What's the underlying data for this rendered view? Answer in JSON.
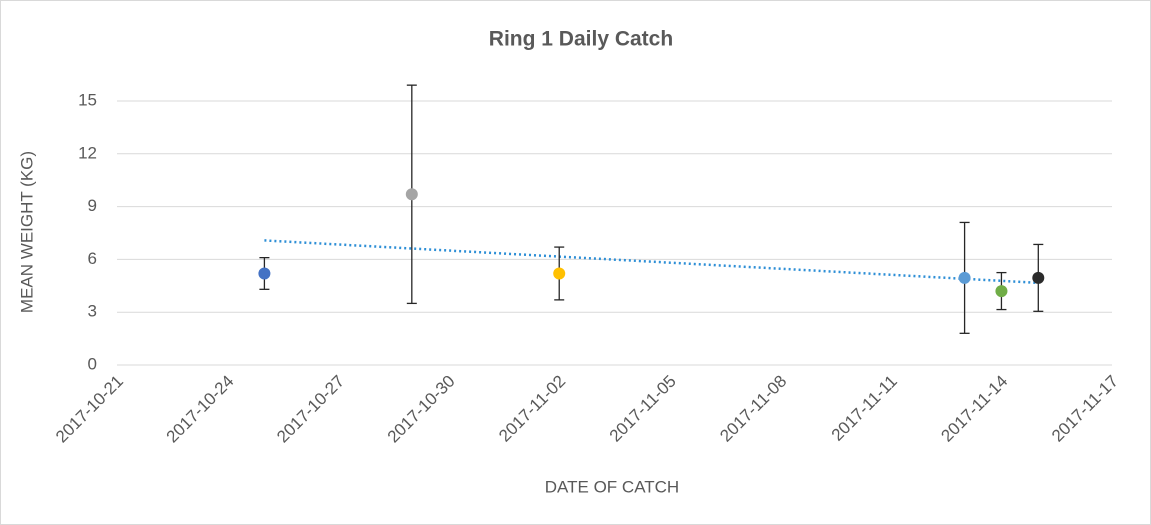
{
  "chart_data": {
    "type": "scatter",
    "title": "Ring 1 Daily Catch",
    "x_label": "DATE OF CATCH",
    "y_label": "MEAN WEIGHT (KG)",
    "x": [
      "2017-10-25",
      "2017-10-29",
      "2017-11-02",
      "2017-11-13",
      "2017-11-14",
      "2017-11-15"
    ],
    "values": [
      5.2,
      9.7,
      5.2,
      4.95,
      4.2,
      4.95
    ],
    "errors": [
      0.9,
      6.2,
      1.5,
      3.15,
      1.05,
      1.9
    ],
    "colors": [
      "#4472c4",
      "#a5a5a5",
      "#ffc000",
      "#5b9bd5",
      "#70ad47",
      "#2b2b2b"
    ],
    "trendline": "linear",
    "trendline_color": "#2e8fd6",
    "xlim": [
      "2017-10-21",
      "2017-11-17"
    ],
    "xticks": [
      "2017-10-21",
      "2017-10-24",
      "2017-10-27",
      "2017-10-30",
      "2017-11-02",
      "2017-11-05",
      "2017-11-08",
      "2017-11-11",
      "2017-11-14",
      "2017-11-17"
    ],
    "ylim": [
      0,
      15
    ],
    "yticks": [
      0,
      3,
      6,
      9,
      12,
      15
    ],
    "grid": true
  }
}
